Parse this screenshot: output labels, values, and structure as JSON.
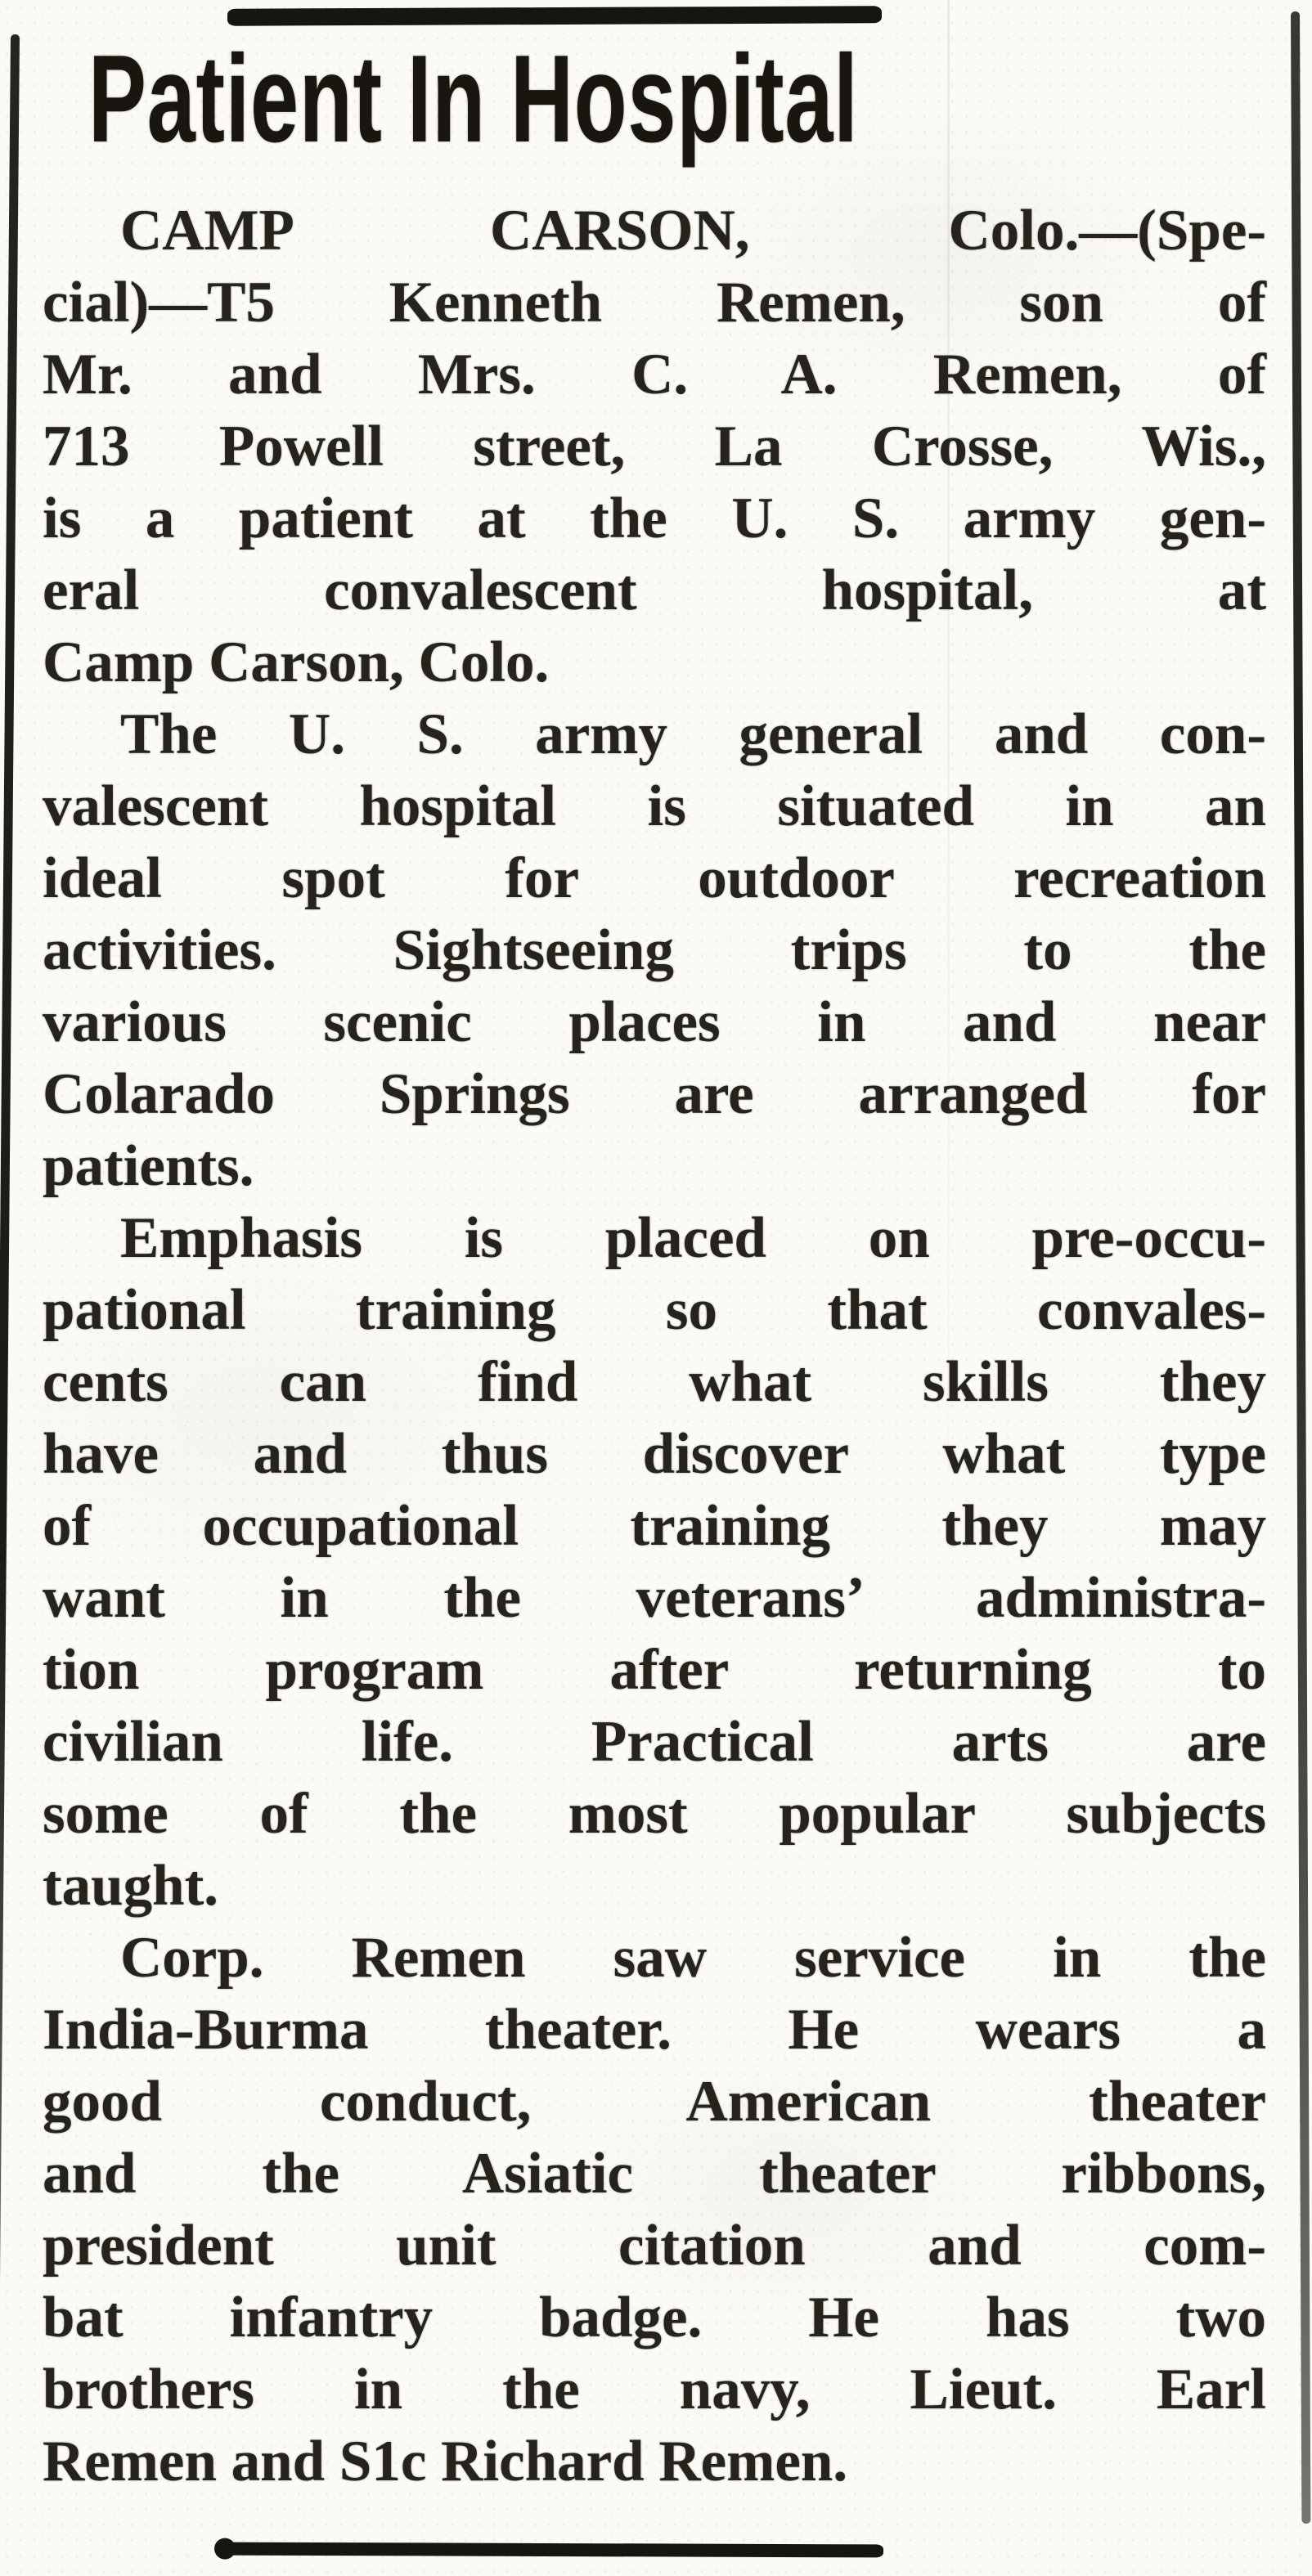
{
  "colors": {
    "paper": "#fbfaf6",
    "ink": "#26231c",
    "rule_ink": "#171511"
  },
  "article": {
    "headline": "Patient In Hospital",
    "paragraphs": [
      {
        "lines": [
          "CAMP CARSON, Colo.—(Spe-",
          "cial)—T5 Kenneth Remen, son of",
          "Mr. and Mrs. C. A. Remen, of",
          "713 Powell street, La Crosse, Wis.,",
          "is a patient at the U. S. army gen-",
          "eral convalescent hospital, at",
          "Camp Carson, Colo."
        ]
      },
      {
        "lines": [
          "The U. S. army general and con-",
          "valescent hospital is situated in an",
          "ideal spot for outdoor recreation",
          "activities. Sightseeing trips to the",
          "various scenic places in and near",
          "Colarado Springs are arranged for",
          "patients."
        ]
      },
      {
        "lines": [
          "Emphasis is placed on pre-occu-",
          "pational training so that convales-",
          "cents can find what skills they",
          "have and thus discover what type",
          "of occupational training they may",
          "want in the veterans’ administra-",
          "tion program after returning to",
          "civilian life. Practical arts are",
          "some of the most popular subjects",
          "taught."
        ]
      },
      {
        "lines": [
          "Corp. Remen saw service in the",
          "India-Burma theater. He wears a",
          "good conduct, American theater",
          "and the Asiatic theater ribbons,",
          "president unit citation and com-",
          "bat infantry badge. He has two",
          "brothers in the navy, Lieut. Earl",
          "Remen and S1c Richard Remen."
        ]
      }
    ]
  }
}
